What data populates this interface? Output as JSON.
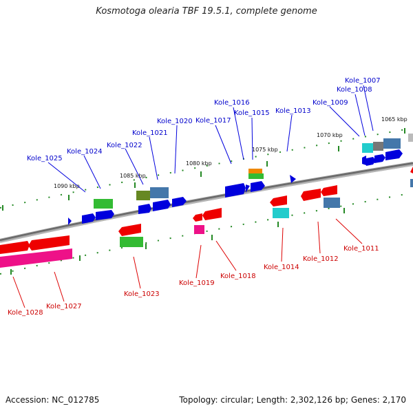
{
  "title": "Kosmotoga olearia TBF 19.5.1, complete genome",
  "footer": {
    "accession": "Accession: NC_012785",
    "summary": "Topology: circular; Length: 2,302,126 bp; Genes: 2,170"
  },
  "scale_labels": [
    "1065 kbp",
    "1070 kbp",
    "1075 kbp",
    "1080 kbp",
    "1085 kbp",
    "1090 kbp"
  ],
  "gene_labels": [
    {
      "id": "Kole_1007",
      "strand": "forward"
    },
    {
      "id": "Kole_1008",
      "strand": "forward"
    },
    {
      "id": "Kole_1009",
      "strand": "forward"
    },
    {
      "id": "Kole_1013",
      "strand": "forward"
    },
    {
      "id": "Kole_1015",
      "strand": "forward"
    },
    {
      "id": "Kole_1016",
      "strand": "forward"
    },
    {
      "id": "Kole_1017",
      "strand": "forward"
    },
    {
      "id": "Kole_1020",
      "strand": "forward"
    },
    {
      "id": "Kole_1021",
      "strand": "forward"
    },
    {
      "id": "Kole_1022",
      "strand": "forward"
    },
    {
      "id": "Kole_1024",
      "strand": "forward"
    },
    {
      "id": "Kole_1025",
      "strand": "forward"
    },
    {
      "id": "Kole_1011",
      "strand": "reverse"
    },
    {
      "id": "Kole_1012",
      "strand": "reverse"
    },
    {
      "id": "Kole_1014",
      "strand": "reverse"
    },
    {
      "id": "Kole_1018",
      "strand": "reverse"
    },
    {
      "id": "Kole_1019",
      "strand": "reverse"
    },
    {
      "id": "Kole_1023",
      "strand": "reverse"
    },
    {
      "id": "Kole_1027",
      "strand": "reverse"
    },
    {
      "id": "Kole_1028",
      "strand": "reverse"
    }
  ],
  "colors": {
    "forward_label": "#0000cc",
    "reverse_label": "#cc0000",
    "backbone": "#888888",
    "tick": "#228822",
    "cds_forward": "#0000dd",
    "cds_reverse": "#ee0000",
    "other_green": "#33bb33",
    "other_cyan": "#22cccc",
    "other_steel": "#4477aa",
    "other_olive": "#668822",
    "other_orange": "#ee8800",
    "other_magenta": "#ee1188",
    "other_grey": "#777777"
  }
}
